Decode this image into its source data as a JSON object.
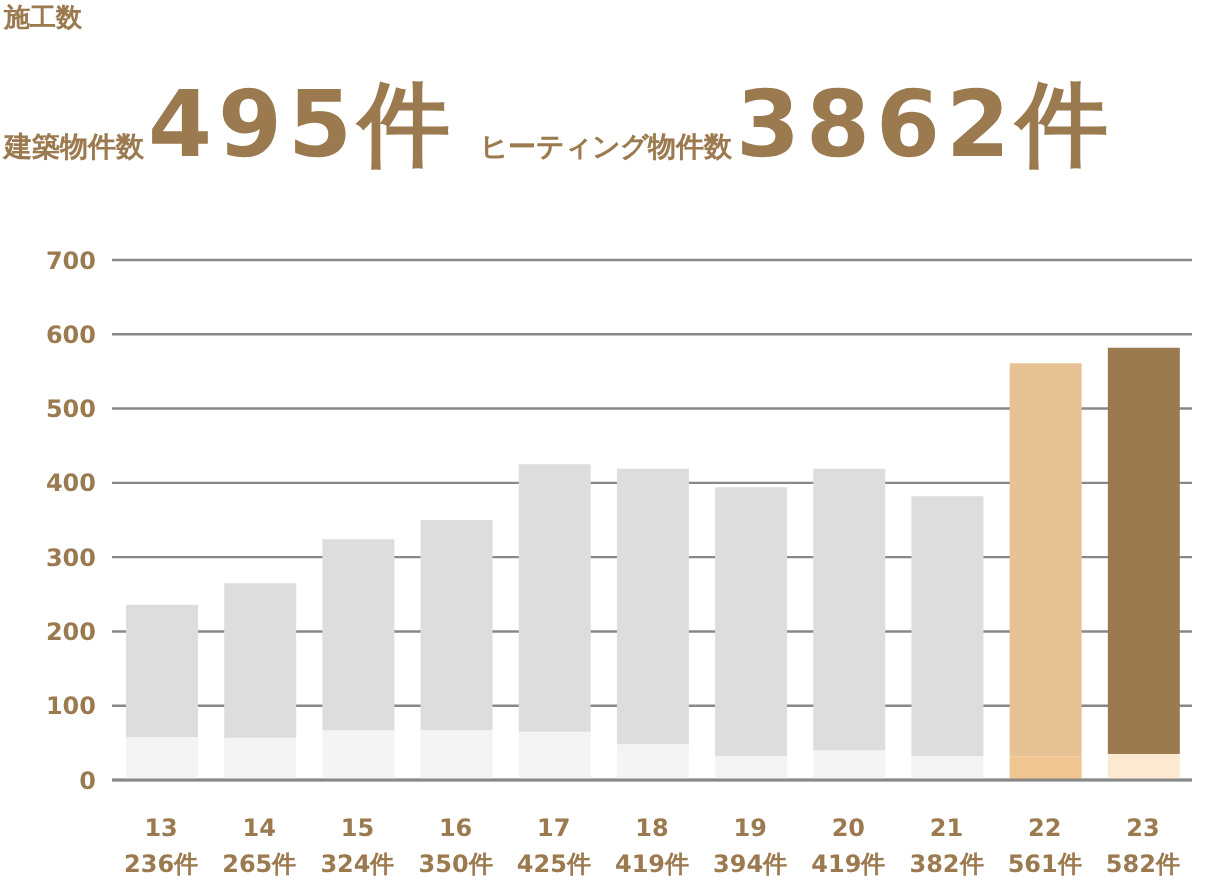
{
  "chart_data": {
    "type": "bar",
    "stacked": true,
    "title": "施工数",
    "annotations": [
      "建築物件数",
      "495件",
      "ヒーティング物件数",
      "3862件"
    ],
    "categories": [
      "13",
      "14",
      "15",
      "16",
      "17",
      "18",
      "19",
      "20",
      "21",
      "22",
      "23"
    ],
    "series": [
      {
        "colors": [
          "#f4f4f4",
          "#f4f4f4",
          "#f4f4f4",
          "#f4f4f4",
          "#f4f4f4",
          "#f4f4f4",
          "#f4f4f4",
          "#f4f4f4",
          "#f4f4f4",
          "#efc592",
          "#fde9d2"
        ],
        "values": [
          58,
          57,
          67,
          67,
          65,
          48,
          32,
          40,
          32,
          32,
          35
        ]
      },
      {
        "colors": [
          "#dddddd",
          "#dddddd",
          "#dddddd",
          "#dddddd",
          "#dddddd",
          "#dddddd",
          "#dddddd",
          "#dddddd",
          "#dddddd",
          "#e6c294",
          "#9b7a50"
        ],
        "values": [
          178,
          208,
          257,
          283,
          360,
          371,
          362,
          379,
          350,
          529,
          547
        ]
      }
    ],
    "totals": [
      "236件",
      "265件",
      "324件",
      "350件",
      "425件",
      "419件",
      "394件",
      "419件",
      "382件",
      "561件",
      "582件"
    ],
    "ylim": [
      0,
      700
    ],
    "yticks": [
      0,
      100,
      200,
      300,
      400,
      500,
      600,
      700
    ],
    "grid": "y"
  }
}
